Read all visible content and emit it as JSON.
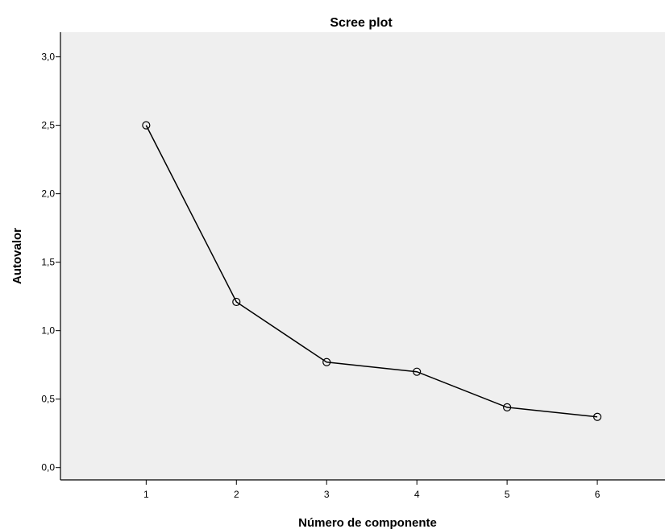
{
  "chart_data": {
    "type": "line",
    "title": "Scree plot",
    "xlabel": "Número de componente",
    "ylabel": "Autovalor",
    "x": [
      1,
      2,
      3,
      4,
      5,
      6
    ],
    "x_tick_labels": [
      "1",
      "2",
      "3",
      "4",
      "5",
      "6"
    ],
    "xlim": [
      0.05,
      6.75
    ],
    "y_ticks": [
      0.0,
      0.5,
      1.0,
      1.5,
      2.0,
      2.5,
      3.0
    ],
    "y_tick_labels": [
      "0,0",
      "0,5",
      "1,0",
      "1,5",
      "2,0",
      "2,5",
      "3,0"
    ],
    "ylim": [
      -0.09,
      3.18
    ],
    "series": [
      {
        "values": [
          2.5,
          1.21,
          0.77,
          0.7,
          0.44,
          0.37
        ]
      }
    ],
    "marker": "open-circle",
    "grid": false,
    "legend": false
  },
  "colors": {
    "plot_background": "#efefef",
    "line": "#000000",
    "axis": "#000000"
  }
}
